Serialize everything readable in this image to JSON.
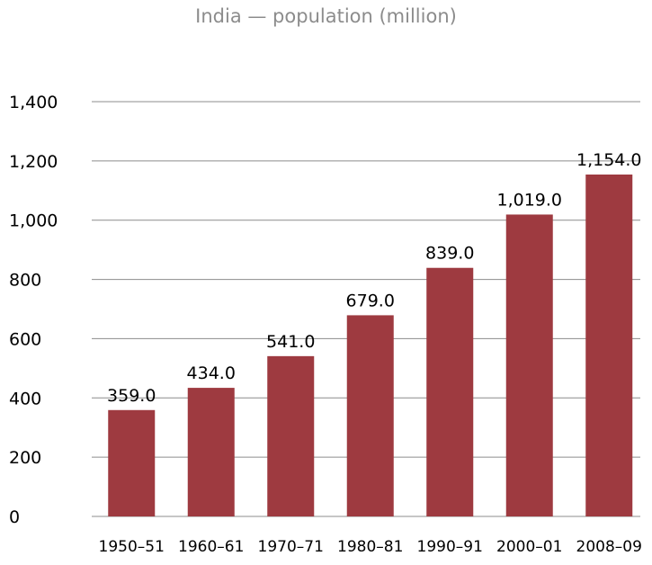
{
  "chart_data": {
    "type": "bar",
    "title": "India — population (million)",
    "xlabel": "",
    "ylabel": "",
    "categories": [
      "1950–51",
      "1960–61",
      "1970–71",
      "1980–81",
      "1990–91",
      "2000–01",
      "2008–09"
    ],
    "values": [
      359.0,
      434.0,
      541.0,
      679.0,
      839.0,
      1019.0,
      1154.0
    ],
    "value_labels": [
      "359.0",
      "434.0",
      "541.0",
      "679.0",
      "839.0",
      "1,019.0",
      "1,154.0"
    ],
    "ylim": [
      0,
      1400
    ],
    "yticks": [
      0,
      200,
      400,
      600,
      800,
      1000,
      1200,
      1400
    ],
    "ytick_labels": [
      "0",
      "200",
      "400",
      "600",
      "800",
      "1,000",
      "1,200",
      "1,400"
    ],
    "grid": true,
    "legend": "none",
    "bar_color": "#9e3a40",
    "grid_color": "#8c8c8c",
    "title_color": "#8c8c8c"
  }
}
